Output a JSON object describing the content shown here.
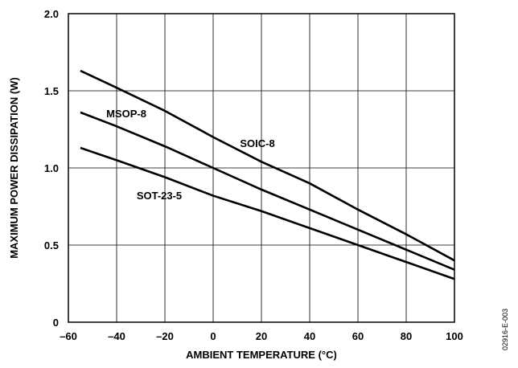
{
  "chart_data": {
    "type": "line",
    "xlabel": "AMBIENT TEMPERATURE (°C)",
    "ylabel": "MAXIMUM POWER DISSIPATION (W)",
    "xlim": [
      -60,
      100
    ],
    "ylim": [
      0,
      2.0
    ],
    "xticks": [
      -60,
      -40,
      -20,
      0,
      20,
      40,
      60,
      80,
      100
    ],
    "xtick_labels": [
      "–60",
      "–40",
      "–20",
      "0",
      "20",
      "40",
      "60",
      "80",
      "100"
    ],
    "yticks": [
      0,
      0.5,
      1.0,
      1.5,
      2.0
    ],
    "ytick_labels": [
      "0",
      "0.5",
      "1.0",
      "1.5",
      "2.0"
    ],
    "grid": true,
    "series": [
      {
        "name": "SOIC-8",
        "x": [
          -55,
          -40,
          -20,
          0,
          20,
          40,
          60,
          80,
          100
        ],
        "y": [
          1.63,
          1.52,
          1.37,
          1.2,
          1.04,
          0.9,
          0.73,
          0.57,
          0.4
        ]
      },
      {
        "name": "MSOP-8",
        "x": [
          -55,
          -40,
          -20,
          0,
          20,
          40,
          60,
          80,
          100
        ],
        "y": [
          1.36,
          1.27,
          1.14,
          1.0,
          0.86,
          0.73,
          0.6,
          0.47,
          0.34
        ]
      },
      {
        "name": "SOT-23-5",
        "x": [
          -55,
          -40,
          -20,
          0,
          20,
          40,
          60,
          80,
          100
        ],
        "y": [
          1.13,
          1.05,
          0.94,
          0.82,
          0.72,
          0.61,
          0.5,
          0.39,
          0.28
        ]
      }
    ],
    "annotations": [
      {
        "text": "MSOP-8",
        "series": "MSOP-8"
      },
      {
        "text": "SOIC-8",
        "series": "SOIC-8"
      },
      {
        "text": "SOT-23-5",
        "series": "SOT-23-5"
      }
    ]
  },
  "figure_id": "02916-E-003"
}
